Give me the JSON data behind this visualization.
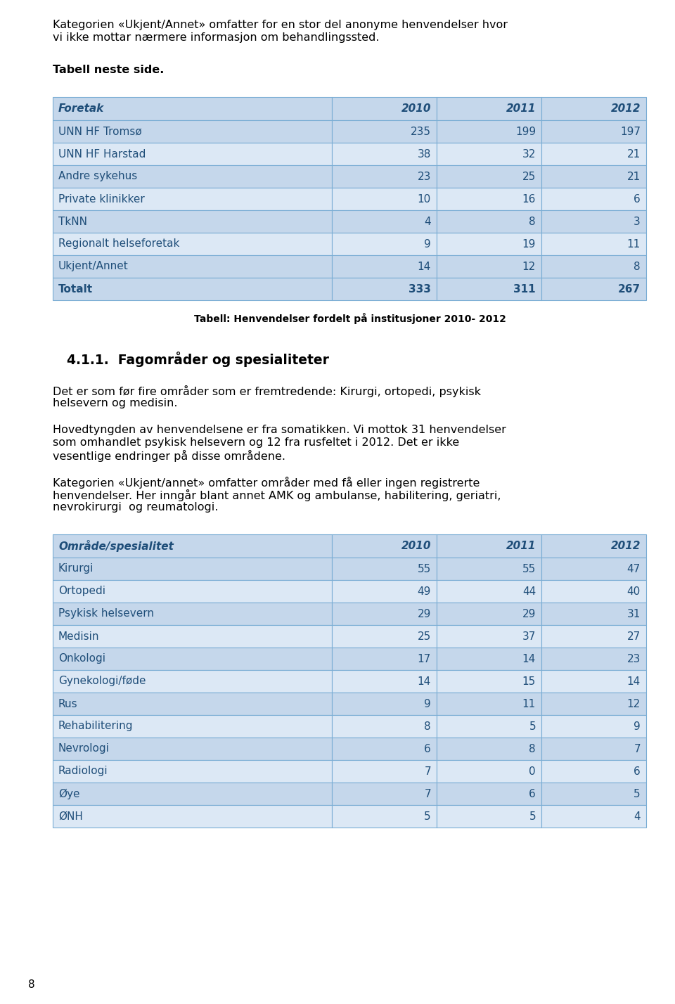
{
  "intro_text_line1": "Kategorien «Ukjent/Annet» omfatter for en stor del anonyme henvendelser hvor",
  "intro_text_line2": "vi ikke mottar nærmere informasjon om behandlingssted.",
  "tabell_neste": "Tabell neste side.",
  "table1_caption": "Tabell: Henvendelser fordelt på institusjoner 2010- 2012",
  "section_title": "4.1.1.  Fagområder og spesialiteter",
  "para1_line1": "Det er som før fire områder som er fremtredende: Kirurgi, ortopedi, psykisk",
  "para1_line2": "helsevern og medisin.",
  "para2_line1": "Hovedtyngden av henvendelsene er fra somatikken. Vi mottok 31 henvendelser",
  "para2_line2": "som omhandlet psykisk helsevern og 12 fra rusfeltet i 2012. Det er ikke",
  "para2_line3": "vesentlige endringer på disse områdene.",
  "para3_line1": "Kategorien «Ukjent/annet» omfatter områder med få eller ingen registrerte",
  "para3_line2": "henvendelser. Her inngår blant annet AMK og ambulanse, habilitering, geriatri,",
  "para3_line3": "nevrokirurgi  og reumatologi.",
  "page_number": "8",
  "table1_headers": [
    "Foretak",
    "2010",
    "2011",
    "2012"
  ],
  "table1_rows": [
    [
      "UNN HF Tromsø",
      "235",
      "199",
      "197"
    ],
    [
      "UNN HF Harstad",
      "38",
      "32",
      "21"
    ],
    [
      "Andre sykehus",
      "23",
      "25",
      "21"
    ],
    [
      "Private klinikker",
      "10",
      "16",
      "6"
    ],
    [
      "TkNN",
      "4",
      "8",
      "3"
    ],
    [
      "Regionalt helseforetak",
      "9",
      "19",
      "11"
    ],
    [
      "Ukjent/Annet",
      "14",
      "12",
      "8"
    ],
    [
      "Totalt",
      "333",
      "311",
      "267"
    ]
  ],
  "table2_headers": [
    "Område/spesialitet",
    "2010",
    "2011",
    "2012"
  ],
  "table2_rows": [
    [
      "Kirurgi",
      "55",
      "55",
      "47"
    ],
    [
      "Ortopedi",
      "49",
      "44",
      "40"
    ],
    [
      "Psykisk helsevern",
      "29",
      "29",
      "31"
    ],
    [
      "Medisin",
      "25",
      "37",
      "27"
    ],
    [
      "Onkologi",
      "17",
      "14",
      "23"
    ],
    [
      "Gynekologi/føde",
      "14",
      "15",
      "14"
    ],
    [
      "Rus",
      "9",
      "11",
      "12"
    ],
    [
      "Rehabilitering",
      "8",
      "5",
      "9"
    ],
    [
      "Nevrologi",
      "6",
      "8",
      "7"
    ],
    [
      "Radiologi",
      "7",
      "0",
      "6"
    ],
    [
      "Øye",
      "7",
      "6",
      "5"
    ],
    [
      "ØNH",
      "5",
      "5",
      "4"
    ]
  ],
  "header_bg": "#c5d7eb",
  "row_light_bg": "#dce8f5",
  "row_dark_bg": "#c5d7eb",
  "total_bg": "#b8cde0",
  "header_text": "#1f4e79",
  "row_text": "#1f4e79",
  "border_color": "#7aadd4",
  "bg_color": "#ffffff",
  "text_color": "#000000"
}
